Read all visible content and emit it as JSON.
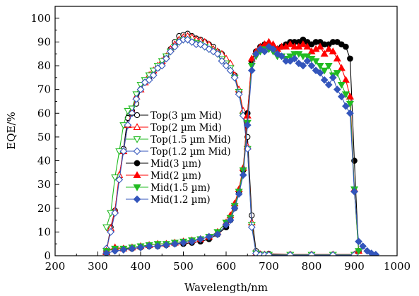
{
  "chart_data": {
    "type": "line",
    "xlabel": "Wavelength/nm",
    "ylabel": "EQE/%",
    "xlim": [
      200,
      1000
    ],
    "ylim": [
      0,
      105
    ],
    "xticks": [
      200,
      300,
      400,
      500,
      600,
      700,
      800,
      900,
      1000
    ],
    "yticks": [
      0,
      10,
      20,
      30,
      40,
      50,
      60,
      70,
      80,
      90,
      100
    ],
    "xtick_labels": [
      "200",
      "300",
      "400",
      "500",
      "600",
      "700",
      "800",
      "900",
      "1000"
    ],
    "ytick_labels": [
      "0",
      "10",
      "20",
      "30",
      "40",
      "50",
      "60",
      "70",
      "80",
      "90",
      "100"
    ],
    "grid": false,
    "legend_position": "center-left",
    "series": [
      {
        "name": "Top(3 µm Mid)",
        "color": "#000000",
        "marker": "circle",
        "filled": false,
        "x": [
          320,
          330,
          340,
          350,
          360,
          370,
          380,
          390,
          400,
          410,
          420,
          430,
          440,
          450,
          460,
          470,
          480,
          490,
          500,
          510,
          520,
          530,
          540,
          550,
          560,
          570,
          580,
          590,
          600,
          610,
          620,
          630,
          640,
          650,
          660,
          670,
          680,
          690,
          700,
          750,
          800,
          850,
          900
        ],
        "y": [
          2,
          12,
          19,
          33,
          45,
          58,
          61,
          64,
          70,
          73,
          75,
          77,
          79,
          81,
          84,
          87,
          90,
          92.5,
          93,
          93.5,
          92.5,
          91.5,
          91,
          90,
          89,
          88,
          86,
          85,
          82,
          80,
          76,
          69,
          60,
          50,
          17,
          2,
          0.7,
          0.5,
          0.8,
          0.5,
          0.5,
          0.5,
          0.5
        ]
      },
      {
        "name": "Top(2 µm Mid)",
        "color": "#ff0000",
        "marker": "triangle-up",
        "filled": false,
        "x": [
          320,
          330,
          340,
          350,
          360,
          370,
          380,
          390,
          400,
          410,
          420,
          430,
          440,
          450,
          460,
          470,
          480,
          490,
          500,
          510,
          520,
          530,
          540,
          550,
          560,
          570,
          580,
          590,
          600,
          610,
          620,
          630,
          640,
          650,
          660,
          670,
          680,
          690,
          700,
          750,
          800,
          850,
          900
        ],
        "y": [
          1.5,
          11.5,
          19,
          34,
          44,
          55,
          61,
          67,
          70,
          73,
          76,
          78,
          80,
          82,
          84,
          87,
          89,
          91,
          92,
          92.5,
          92,
          91,
          90.5,
          90,
          89,
          87,
          86,
          85,
          83,
          81,
          76,
          70,
          61,
          46,
          14,
          1,
          0.6,
          0.5,
          0.6,
          0.5,
          0.5,
          0.5,
          0.5
        ]
      },
      {
        "name": "Top(1.5 µm Mid)",
        "color": "#22bb22",
        "marker": "triangle-down",
        "filled": false,
        "x": [
          320,
          330,
          340,
          350,
          360,
          370,
          380,
          390,
          400,
          410,
          420,
          430,
          440,
          450,
          460,
          470,
          480,
          490,
          500,
          510,
          520,
          530,
          540,
          550,
          560,
          570,
          580,
          590,
          600,
          610,
          620,
          630,
          640,
          650,
          660,
          670,
          680,
          690,
          700,
          750,
          800,
          850,
          900
        ],
        "y": [
          12,
          18,
          33,
          44,
          55,
          61,
          62,
          68,
          72,
          74,
          76,
          78,
          80,
          82,
          84,
          86,
          88,
          90,
          91,
          91,
          90,
          89.5,
          89,
          88,
          87,
          86,
          85,
          83,
          81,
          79,
          75,
          69,
          59,
          45,
          13,
          1,
          0.5,
          0.4,
          0.4,
          0.4,
          0.4,
          0.4,
          0.4
        ]
      },
      {
        "name": "Top(1.2 µm Mid)",
        "color": "#3355bb",
        "marker": "diamond",
        "filled": false,
        "x": [
          320,
          330,
          340,
          350,
          360,
          370,
          380,
          390,
          400,
          410,
          420,
          430,
          440,
          450,
          460,
          470,
          480,
          490,
          500,
          510,
          520,
          530,
          540,
          550,
          560,
          570,
          580,
          590,
          600,
          610,
          620,
          630,
          640,
          650,
          660,
          670,
          680,
          690,
          700,
          750,
          800,
          850,
          900
        ],
        "y": [
          3,
          10,
          18,
          32,
          44,
          55,
          60,
          66,
          70,
          73,
          74,
          76,
          79,
          80,
          83,
          86,
          88,
          90,
          91,
          91,
          90,
          89,
          89,
          88,
          87,
          86,
          85,
          82,
          80,
          78,
          75,
          68,
          59,
          45,
          12,
          1,
          0.3,
          0.3,
          0.3,
          0.3,
          0.3,
          0.3,
          0.3
        ]
      },
      {
        "name": "Mid(3 µm)",
        "color": "#000000",
        "marker": "circle",
        "filled": true,
        "x": [
          320,
          340,
          360,
          380,
          400,
          420,
          440,
          460,
          480,
          500,
          520,
          540,
          560,
          580,
          600,
          610,
          620,
          630,
          640,
          650,
          660,
          670,
          680,
          690,
          700,
          710,
          720,
          730,
          740,
          750,
          760,
          770,
          780,
          790,
          800,
          810,
          820,
          830,
          840,
          850,
          860,
          870,
          880,
          890,
          900,
          910
        ],
        "y": [
          2,
          3,
          3,
          3,
          3.5,
          4,
          4,
          4.5,
          5,
          5,
          5.5,
          6,
          7,
          9,
          12,
          15,
          20,
          27,
          36,
          60,
          82,
          86,
          88,
          89,
          88,
          87,
          87,
          88,
          89,
          90,
          90,
          90,
          91,
          90,
          89,
          90,
          90,
          89,
          89,
          90,
          90,
          89,
          88,
          83,
          40,
          2
        ]
      },
      {
        "name": "Mid(2 µm)",
        "color": "#ff0000",
        "marker": "triangle-up",
        "filled": true,
        "x": [
          320,
          340,
          360,
          380,
          400,
          420,
          440,
          460,
          480,
          500,
          520,
          540,
          560,
          580,
          600,
          610,
          620,
          630,
          640,
          650,
          660,
          670,
          680,
          690,
          700,
          710,
          720,
          730,
          740,
          750,
          760,
          770,
          780,
          790,
          800,
          810,
          820,
          830,
          840,
          850,
          860,
          870,
          880,
          890,
          900,
          910
        ],
        "y": [
          2,
          3.5,
          3,
          3.5,
          4,
          4.5,
          5,
          5,
          5.5,
          6,
          6.5,
          7,
          8,
          10,
          14,
          17,
          22,
          28,
          37,
          59,
          83,
          86,
          88,
          89,
          90,
          89,
          87,
          88,
          88,
          89,
          88,
          88,
          89,
          88,
          86,
          87,
          88,
          85,
          87,
          86,
          83,
          79,
          74,
          67,
          28,
          2
        ]
      },
      {
        "name": "Mid(1.5 µm)",
        "color": "#22bb22",
        "marker": "triangle-down",
        "filled": true,
        "x": [
          320,
          340,
          360,
          380,
          400,
          420,
          440,
          460,
          480,
          500,
          520,
          540,
          560,
          580,
          600,
          610,
          620,
          630,
          640,
          650,
          660,
          670,
          680,
          690,
          700,
          710,
          720,
          730,
          740,
          750,
          760,
          770,
          780,
          790,
          800,
          810,
          820,
          830,
          840,
          850,
          860,
          870,
          880,
          890,
          900,
          910
        ],
        "y": [
          2,
          3,
          3,
          3.5,
          4,
          4.5,
          5,
          5,
          5.5,
          6,
          6.5,
          7,
          8,
          10,
          14,
          16,
          21,
          27,
          36,
          56,
          80,
          84,
          86,
          87,
          87,
          86,
          84,
          84,
          83,
          84,
          85,
          85,
          84,
          84,
          83,
          82,
          80,
          78,
          80,
          76,
          77,
          72,
          68,
          64,
          28,
          2
        ]
      },
      {
        "name": "Mid(1.2 µm)",
        "color": "#3355bb",
        "marker": "diamond",
        "filled": true,
        "x": [
          320,
          340,
          360,
          380,
          400,
          420,
          440,
          460,
          480,
          500,
          520,
          540,
          560,
          580,
          600,
          610,
          620,
          630,
          640,
          650,
          660,
          670,
          680,
          690,
          700,
          710,
          720,
          730,
          740,
          750,
          760,
          770,
          780,
          790,
          800,
          810,
          820,
          830,
          840,
          850,
          860,
          870,
          880,
          890,
          900,
          910,
          920,
          930,
          940,
          950
        ],
        "y": [
          1,
          2,
          2.5,
          3,
          3.5,
          4,
          4,
          4.5,
          5,
          5.5,
          6,
          7,
          8,
          9,
          13,
          15,
          20,
          26,
          34,
          55,
          78,
          85,
          87,
          86,
          88,
          87,
          85,
          84,
          82,
          82,
          83,
          81,
          80,
          82,
          80,
          78,
          77,
          74,
          72,
          75,
          70,
          67,
          63,
          60,
          27,
          6,
          4,
          2,
          1,
          0.5
        ]
      }
    ]
  }
}
